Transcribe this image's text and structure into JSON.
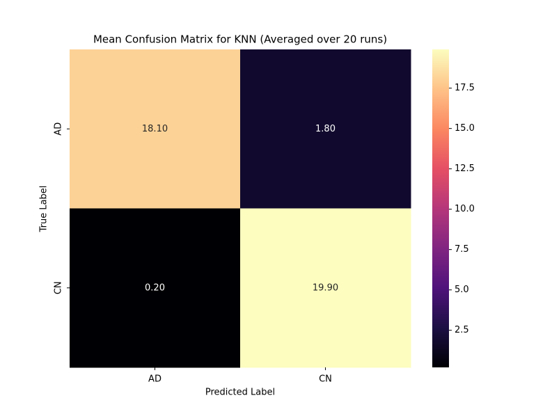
{
  "chart_data": {
    "type": "heatmap",
    "title": "Mean Confusion Matrix for KNN (Averaged over 20 runs)",
    "x_label": "Predicted Label",
    "y_label": "True Label",
    "x_categories": [
      "AD",
      "CN"
    ],
    "y_categories": [
      "AD",
      "CN"
    ],
    "values": [
      [
        18.1,
        1.8
      ],
      [
        0.2,
        19.9
      ]
    ],
    "value_labels": [
      [
        "18.10",
        "1.80"
      ],
      [
        "0.20",
        "19.90"
      ]
    ],
    "colormap": "magma",
    "clim": [
      0.2,
      19.9
    ],
    "cticks": [
      2.5,
      {
        "value": 5,
        "label": "5.0"
      },
      7.5,
      {
        "value": 10,
        "label": "10.0"
      },
      12.5,
      {
        "value": 15,
        "label": "15.0"
      },
      17.5
    ]
  }
}
